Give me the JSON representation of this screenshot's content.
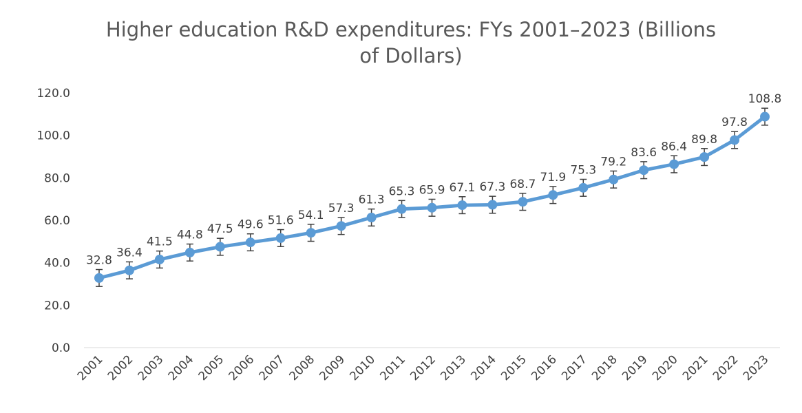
{
  "colors": {
    "series": "#5b9bd5",
    "error_bar": "#404040",
    "axis": "#d9d9d9",
    "text": "#404040",
    "title": "#595959"
  },
  "chart_data": {
    "type": "line",
    "title": "Higher education R&D expenditures: FYs 2001–2023 (Billions of Dollars)",
    "title_lines": [
      "Higher education R&D expenditures: FYs 2001–2023 (Billions",
      "of Dollars)"
    ],
    "xlabel": "",
    "ylabel": "",
    "ylim": [
      0,
      120
    ],
    "y_ticks": [
      0,
      20,
      40,
      60,
      80,
      100,
      120
    ],
    "y_tick_labels": [
      "0.0",
      "20.0",
      "40.0",
      "60.0",
      "80.0",
      "100.0",
      "120.0"
    ],
    "grid": false,
    "legend": "none",
    "categories": [
      "2001",
      "2002",
      "2003",
      "2004",
      "2005",
      "2006",
      "2007",
      "2008",
      "2009",
      "2010",
      "2011",
      "2012",
      "2013",
      "2014",
      "2015",
      "2016",
      "2017",
      "2018",
      "2019",
      "2020",
      "2021",
      "2022",
      "2023"
    ],
    "series": [
      {
        "name": "Higher education R&D expenditures",
        "values": [
          32.8,
          36.4,
          41.5,
          44.8,
          47.5,
          49.6,
          51.6,
          54.1,
          57.3,
          61.3,
          65.3,
          65.9,
          67.1,
          67.3,
          68.7,
          71.9,
          75.3,
          79.2,
          83.6,
          86.4,
          89.8,
          97.8,
          108.8
        ],
        "labels": [
          "32.8",
          "36.4",
          "41.5",
          "44.8",
          "47.5",
          "49.6",
          "51.6",
          "54.1",
          "57.3",
          "61.3",
          "65.3",
          "65.9",
          "67.1",
          "67.3",
          "68.7",
          "71.9",
          "75.3",
          "79.2",
          "83.6",
          "86.4",
          "89.8",
          "97.8",
          "108.8"
        ],
        "error_margin": 4
      }
    ]
  }
}
